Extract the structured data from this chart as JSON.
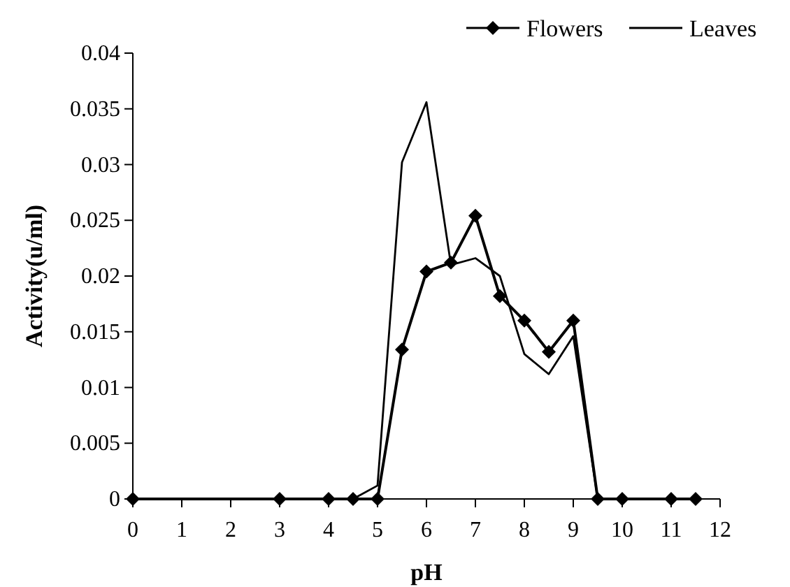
{
  "chart_data": {
    "type": "line",
    "xlabel": "pH",
    "ylabel": "Activity(u/ml)",
    "x": [
      0,
      3,
      4,
      4.5,
      5,
      5.5,
      6,
      6.5,
      7,
      7.5,
      8,
      8.5,
      9,
      9.5,
      10,
      11,
      11.5
    ],
    "series": [
      {
        "name": "Flowers",
        "color": "#000000",
        "marker": "diamond",
        "values": [
          0,
          0,
          0,
          0,
          0,
          0.0134,
          0.0204,
          0.0212,
          0.0254,
          0.0182,
          0.016,
          0.0132,
          0.016,
          0,
          0,
          0,
          0
        ]
      },
      {
        "name": "Leaves",
        "color": "#000000",
        "marker": "none",
        "values": [
          0,
          0,
          0,
          0,
          0.0012,
          0.0302,
          0.0356,
          0.021,
          0.0216,
          0.02,
          0.013,
          0.0112,
          0.0146,
          0,
          0,
          0,
          0
        ]
      }
    ],
    "xlim": [
      0,
      12
    ],
    "xticks": [
      0,
      1,
      2,
      3,
      4,
      5,
      6,
      7,
      8,
      9,
      10,
      11,
      12
    ],
    "ylim": [
      0,
      0.04
    ],
    "yticks": [
      0,
      0.005,
      0.01,
      0.015,
      0.02,
      0.025,
      0.03,
      0.035,
      0.04
    ],
    "grid": false,
    "legend": "top right"
  }
}
